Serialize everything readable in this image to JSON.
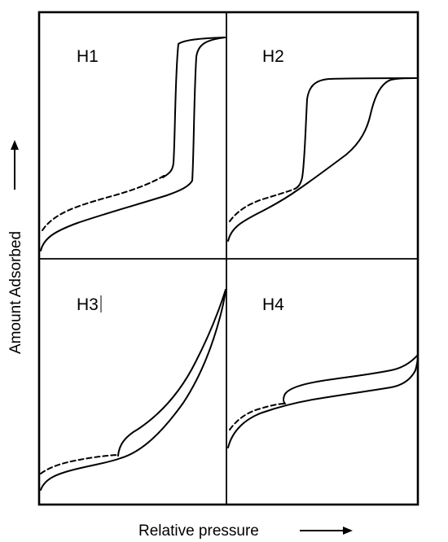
{
  "panels": [
    {
      "label": "H1"
    },
    {
      "label": "H2"
    },
    {
      "label": "H3"
    },
    {
      "label": "H4"
    }
  ],
  "axes": {
    "y_label": "Amount Adsorbed",
    "x_label": "Relative pressure"
  },
  "line_styles": {
    "solid": "adsorption/desorption branch",
    "dashed": "extension of branch at low pressure"
  }
}
